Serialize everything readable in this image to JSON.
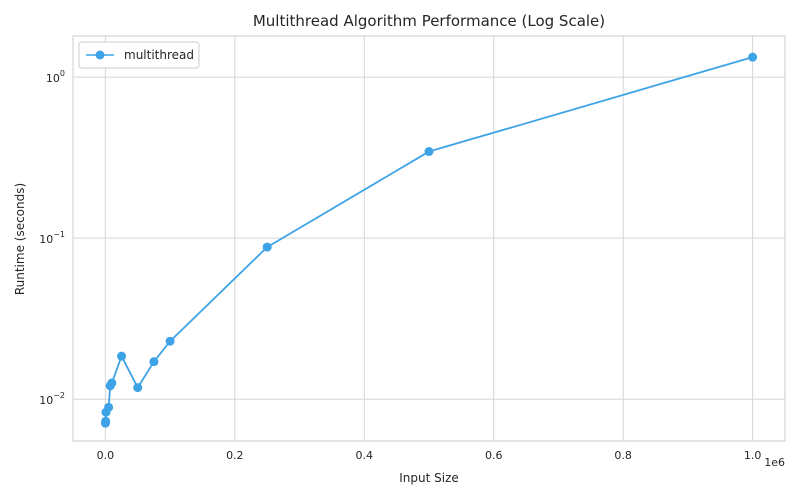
{
  "chart_data": {
    "type": "line",
    "title": "Multithread Algorithm Performance (Log Scale)",
    "xlabel": "Input Size",
    "ylabel": "Runtime (seconds)",
    "x_scale": "linear",
    "y_scale": "log",
    "x_offset_label": "1e6",
    "xlim": [
      -50000,
      1050000
    ],
    "ylim": [
      0.0055,
      1.8
    ],
    "x_ticks": [
      0,
      200000,
      400000,
      600000,
      800000,
      1000000
    ],
    "x_tick_labels": [
      "0.0",
      "0.2",
      "0.4",
      "0.6",
      "0.8",
      "1.0"
    ],
    "y_ticks": [
      0.01,
      0.1,
      1
    ],
    "y_tick_bases": [
      "10",
      "10",
      "10"
    ],
    "y_tick_exps": [
      "−2",
      "−1",
      "0"
    ],
    "grid": true,
    "legend_position": "top-left",
    "series": [
      {
        "name": "multithread",
        "color": "#3ea3e6",
        "x": [
          100,
          500,
          1000,
          5000,
          7500,
          10000,
          25000,
          50000,
          75000,
          100000,
          250000,
          500000,
          1000000
        ],
        "y": [
          0.0071,
          0.0073,
          0.0083,
          0.0089,
          0.0121,
          0.0126,
          0.0185,
          0.0118,
          0.0171,
          0.0229,
          0.088,
          0.345,
          1.33
        ]
      }
    ]
  }
}
